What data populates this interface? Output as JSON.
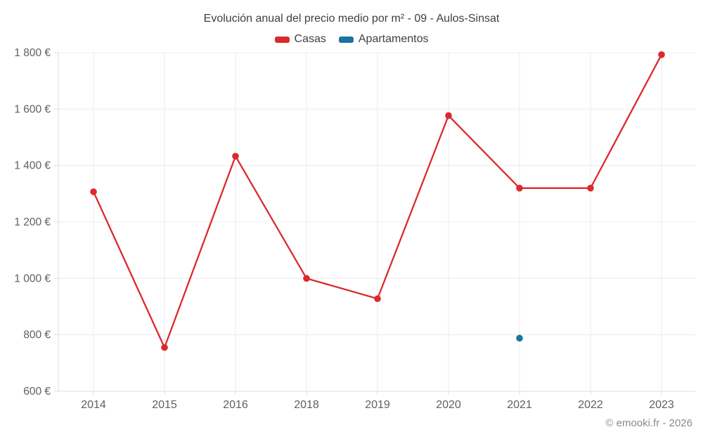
{
  "title": "Evolución anual del precio medio por m² - 09 - Aulos-Sinsat",
  "footer_credit": "© emooki.fr - 2026",
  "legend": {
    "items": [
      {
        "label": "Casas",
        "color": "#db2a2e"
      },
      {
        "label": "Apartamentos",
        "color": "#1a73a0"
      }
    ]
  },
  "colors": {
    "grid": "#ececec",
    "axis": "#dddddd",
    "tick": "#d8d8d8",
    "axis_label": "#606060"
  },
  "chart_data": {
    "type": "line",
    "title": "Evolución anual del precio medio por m² - 09 - Aulos-Sinsat",
    "categories": [
      "2014",
      "2015",
      "2016",
      "2018",
      "2019",
      "2020",
      "2021",
      "2022",
      "2023"
    ],
    "series": [
      {
        "name": "Casas",
        "color": "#db2a2e",
        "values": [
          1307,
          755,
          1433,
          1000,
          928,
          1577,
          1320,
          1320,
          1793
        ]
      },
      {
        "name": "Apartamentos",
        "color": "#1a73a0",
        "values": [
          null,
          null,
          null,
          null,
          null,
          null,
          788,
          null,
          null
        ]
      }
    ],
    "xlabel": "",
    "ylabel": "",
    "ylim": [
      600,
      1800
    ],
    "ytick_values": [
      600,
      800,
      1000,
      1200,
      1400,
      1600,
      1800
    ],
    "ytick_labels": [
      "600 €",
      "800 €",
      "1 000 €",
      "1 200 €",
      "1 400 €",
      "1 600 €",
      "1 800 €"
    ],
    "grid": true,
    "legend_position": "top"
  }
}
